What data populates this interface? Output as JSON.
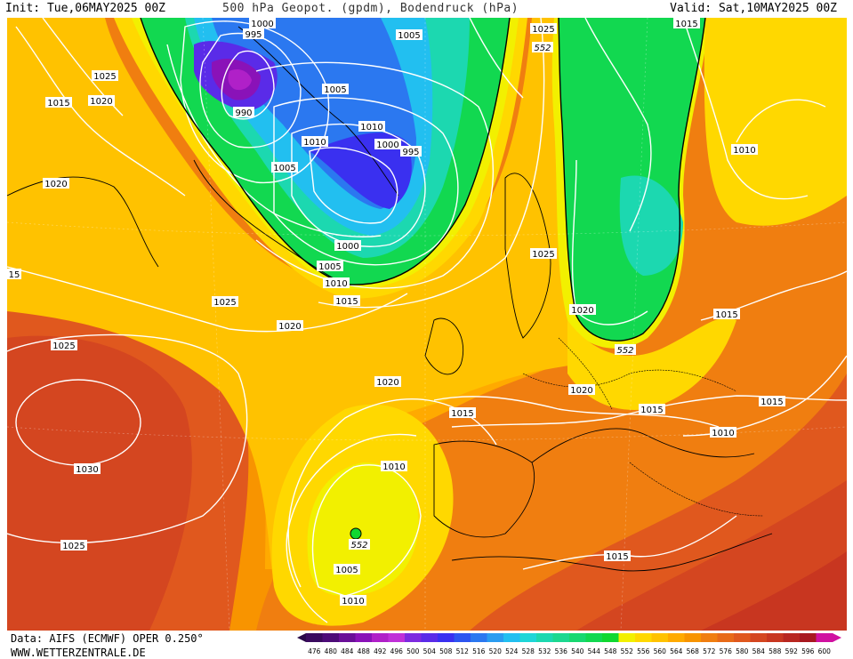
{
  "header": {
    "init": "Init: Tue,06MAY2025 00Z",
    "title": "500 hPa Geopot. (gpdm), Bodendruck (hPa)",
    "valid": "Valid: Sat,10MAY2025 00Z"
  },
  "footer": {
    "data_source": "Data: AIFS (ECMWF) OPER 0.250°",
    "website": "WWW.WETTERZENTRALE.DE"
  },
  "legend": {
    "values": [
      476,
      480,
      484,
      488,
      492,
      496,
      500,
      504,
      508,
      512,
      516,
      520,
      524,
      528,
      532,
      536,
      540,
      544,
      548,
      552,
      556,
      560,
      564,
      568,
      572,
      576,
      580,
      584,
      588,
      592,
      596,
      600
    ],
    "colors": [
      "#3a0a5e",
      "#4d0c78",
      "#6a0f98",
      "#8a12b8",
      "#b020c8",
      "#c030d8",
      "#7d2ae0",
      "#5a2be8",
      "#3a30f0",
      "#2d55f0",
      "#2b78f0",
      "#2a9cf0",
      "#22bff0",
      "#1ed6d8",
      "#1cd8b0",
      "#1cd890",
      "#18d870",
      "#12d850",
      "#10d830",
      "#f2f000",
      "#ffd800",
      "#ffc200",
      "#ffaa00",
      "#f89400",
      "#f07e10",
      "#e86a18",
      "#e0581e",
      "#d44620",
      "#c83620",
      "#b82620",
      "#a81820",
      "#d010a0"
    ]
  },
  "map_labels": {
    "isobars": [
      {
        "text": "1000"
      },
      {
        "text": "995"
      },
      {
        "text": "990"
      },
      {
        "text": "1005"
      },
      {
        "text": "1005"
      },
      {
        "text": "1010"
      },
      {
        "text": "1010"
      },
      {
        "text": "1000"
      },
      {
        "text": "995"
      },
      {
        "text": "1005"
      },
      {
        "text": "1000"
      },
      {
        "text": "1005"
      },
      {
        "text": "1010"
      },
      {
        "text": "1015"
      },
      {
        "text": "1025"
      },
      {
        "text": "1020"
      },
      {
        "text": "1015"
      },
      {
        "text": "1020"
      },
      {
        "text": "15"
      },
      {
        "text": "1025"
      },
      {
        "text": "1020"
      },
      {
        "text": "1025"
      },
      {
        "text": "1030"
      },
      {
        "text": "1025"
      },
      {
        "text": "1020"
      },
      {
        "text": "1015"
      },
      {
        "text": "1010"
      },
      {
        "text": "1005"
      },
      {
        "text": "1010"
      },
      {
        "text": "1025"
      },
      {
        "text": "1015"
      },
      {
        "text": "1025"
      },
      {
        "text": "1020"
      },
      {
        "text": "1020"
      },
      {
        "text": "1015"
      },
      {
        "text": "1015"
      },
      {
        "text": "1010"
      },
      {
        "text": "1015"
      },
      {
        "text": "1015"
      },
      {
        "text": "1010"
      },
      {
        "text": "1015"
      }
    ],
    "heights": [
      {
        "text": "552"
      },
      {
        "text": "552"
      },
      {
        "text": "552"
      }
    ]
  }
}
